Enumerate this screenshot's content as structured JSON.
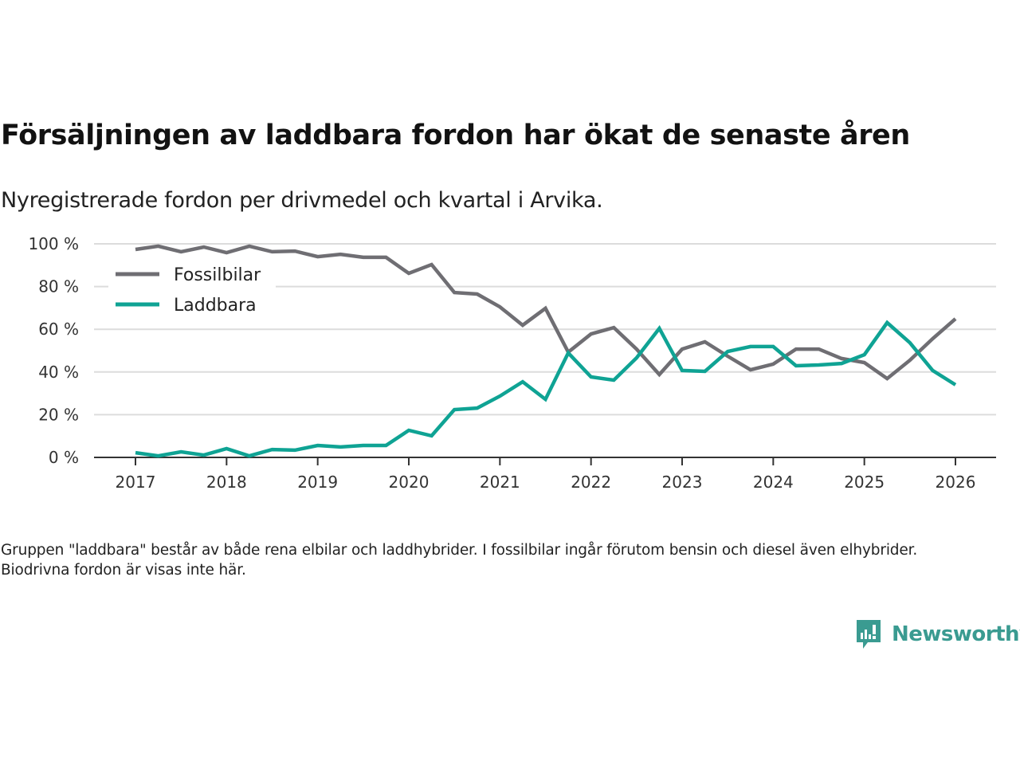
{
  "header": {
    "title": "Försäljningen av laddbara fordon har ökat de senaste åren",
    "subtitle": "Nyregistrerade fordon per drivmedel och kvartal i Arvika."
  },
  "footnote": "Gruppen \"laddbara\" består av både rena elbilar och laddhybrider. I fossilbilar ingår förutom bensin och diesel även elhybrider. Biodrivna fordon är visas inte här.",
  "brand": {
    "name": "Newsworthy",
    "icon": "newsworthy-logo-icon",
    "color": "#3a9b91"
  },
  "chart_data": {
    "type": "line",
    "title": "Försäljningen av laddbara fordon har ökat de senaste åren",
    "subtitle": "Nyregistrerade fordon per drivmedel och kvartal i Arvika.",
    "xlabel": "",
    "ylabel": "",
    "x_unit": "quarter",
    "x_start": 2017.0,
    "x_step": 0.25,
    "xlim": [
      2016.55,
      2026.45
    ],
    "ylim": [
      0,
      100
    ],
    "x_ticks": [
      2017,
      2018,
      2019,
      2020,
      2021,
      2022,
      2023,
      2024,
      2025,
      2026
    ],
    "x_tick_labels": [
      "2017",
      "2018",
      "2019",
      "2020",
      "2021",
      "2022",
      "2023",
      "2024",
      "2025",
      "2026"
    ],
    "y_ticks": [
      0,
      20,
      40,
      60,
      80,
      100
    ],
    "y_tick_labels": [
      "0 %",
      "20 %",
      "40 %",
      "60 %",
      "80 %",
      "100 %"
    ],
    "grid": true,
    "legend": "top-left",
    "series": [
      {
        "name": "Fossilbilar",
        "color": "#6f6e73",
        "values": [
          97.4,
          98.9,
          96.3,
          98.5,
          95.9,
          98.9,
          96.3,
          96.6,
          94.0,
          95.1,
          93.7,
          93.7,
          86.2,
          90.3,
          77.2,
          76.5,
          70.5,
          61.9,
          69.8,
          49.3,
          57.8,
          60.8,
          50.7,
          38.8,
          50.7,
          54.1,
          47.4,
          41.0,
          43.7,
          50.7,
          50.7,
          46.3,
          44.4,
          36.9,
          45.5,
          55.6,
          64.9
        ]
      },
      {
        "name": "Laddbara",
        "color": "#0fa394",
        "values": [
          2.2,
          0.7,
          2.6,
          1.1,
          4.1,
          0.7,
          3.7,
          3.4,
          5.6,
          4.9,
          5.6,
          5.6,
          12.7,
          10.1,
          22.4,
          23.1,
          28.7,
          35.4,
          27.2,
          48.9,
          37.7,
          36.2,
          46.6,
          60.4,
          40.7,
          40.3,
          49.6,
          51.9,
          51.9,
          42.9,
          43.3,
          44.0,
          48.1,
          63.1,
          53.7,
          40.7,
          34.0
        ]
      }
    ]
  }
}
